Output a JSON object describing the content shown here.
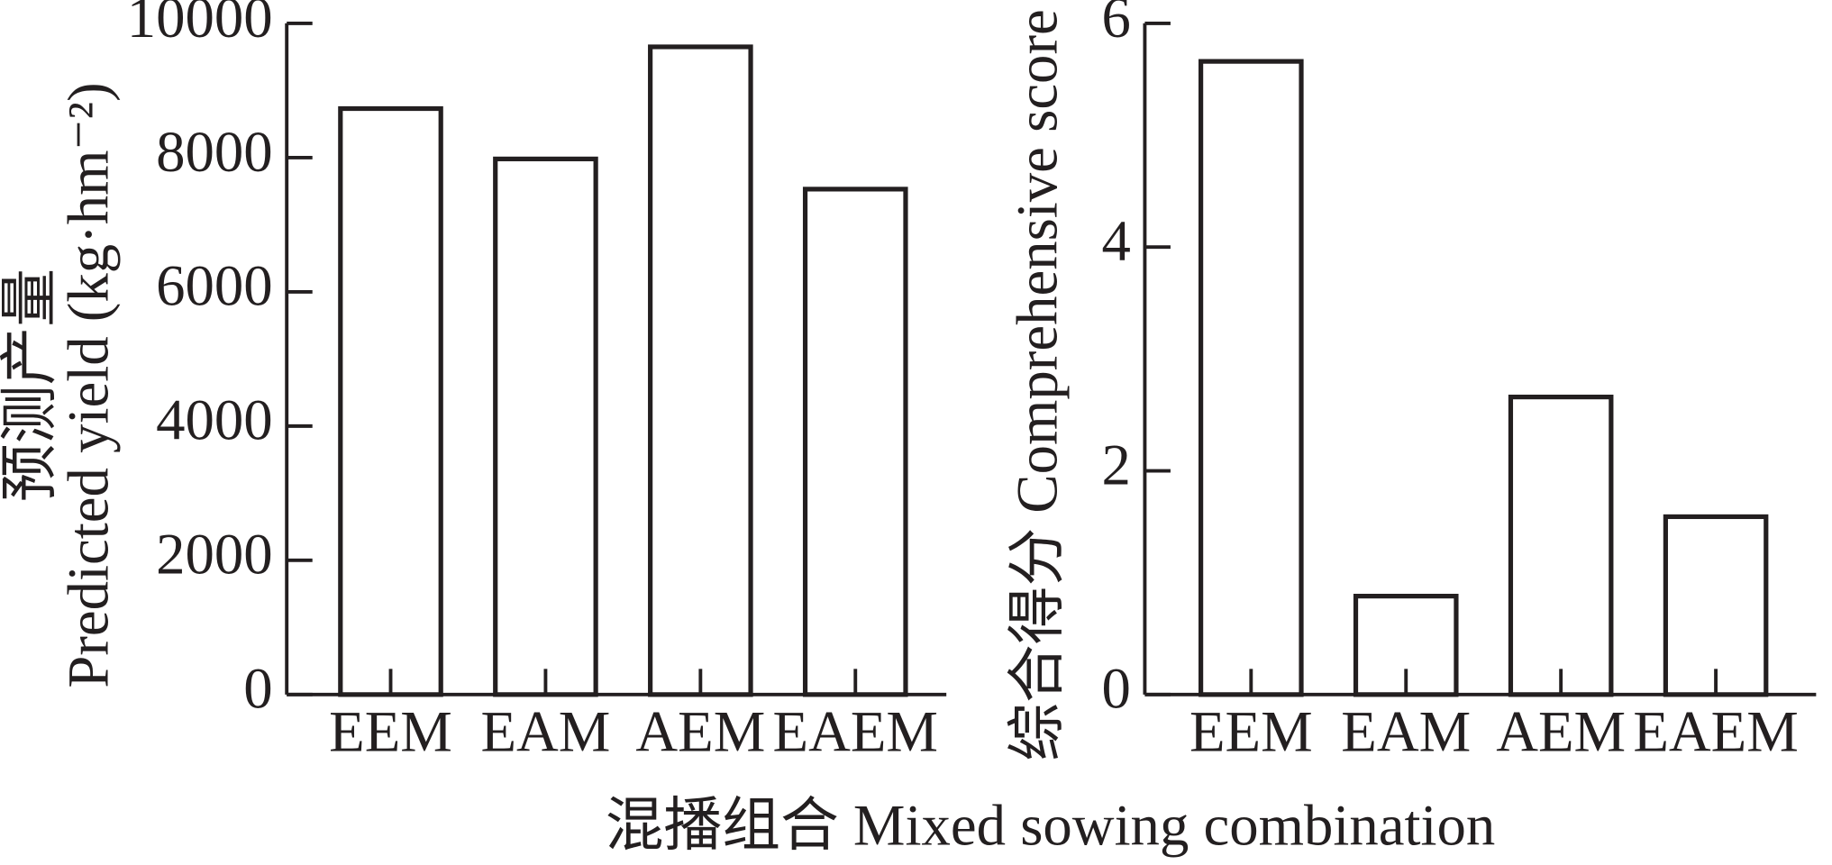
{
  "chart_data": [
    {
      "type": "bar",
      "ylabel": [
        "预测产量",
        "Predicted yield (kg·hm⁻²)"
      ],
      "categories": [
        "EEM",
        "EAM",
        "AEM",
        "EAEM"
      ],
      "values": [
        8730,
        7980,
        9650,
        7530
      ],
      "color": "#ffffff",
      "ylim": [
        0,
        10000
      ],
      "yticks": [
        0,
        2000,
        4000,
        6000,
        8000,
        10000
      ]
    },
    {
      "type": "bar",
      "ylabel": [
        "综合得分 Comprehensive score"
      ],
      "categories": [
        "EEM",
        "EAM",
        "AEM",
        "EAEM"
      ],
      "values": [
        5.66,
        0.88,
        2.66,
        1.59
      ],
      "color": "#ffffff",
      "ylim": [
        0,
        6
      ],
      "yticks": [
        0,
        2,
        4,
        6
      ]
    }
  ],
  "xlabel": "混播组合 Mixed sowing combination"
}
